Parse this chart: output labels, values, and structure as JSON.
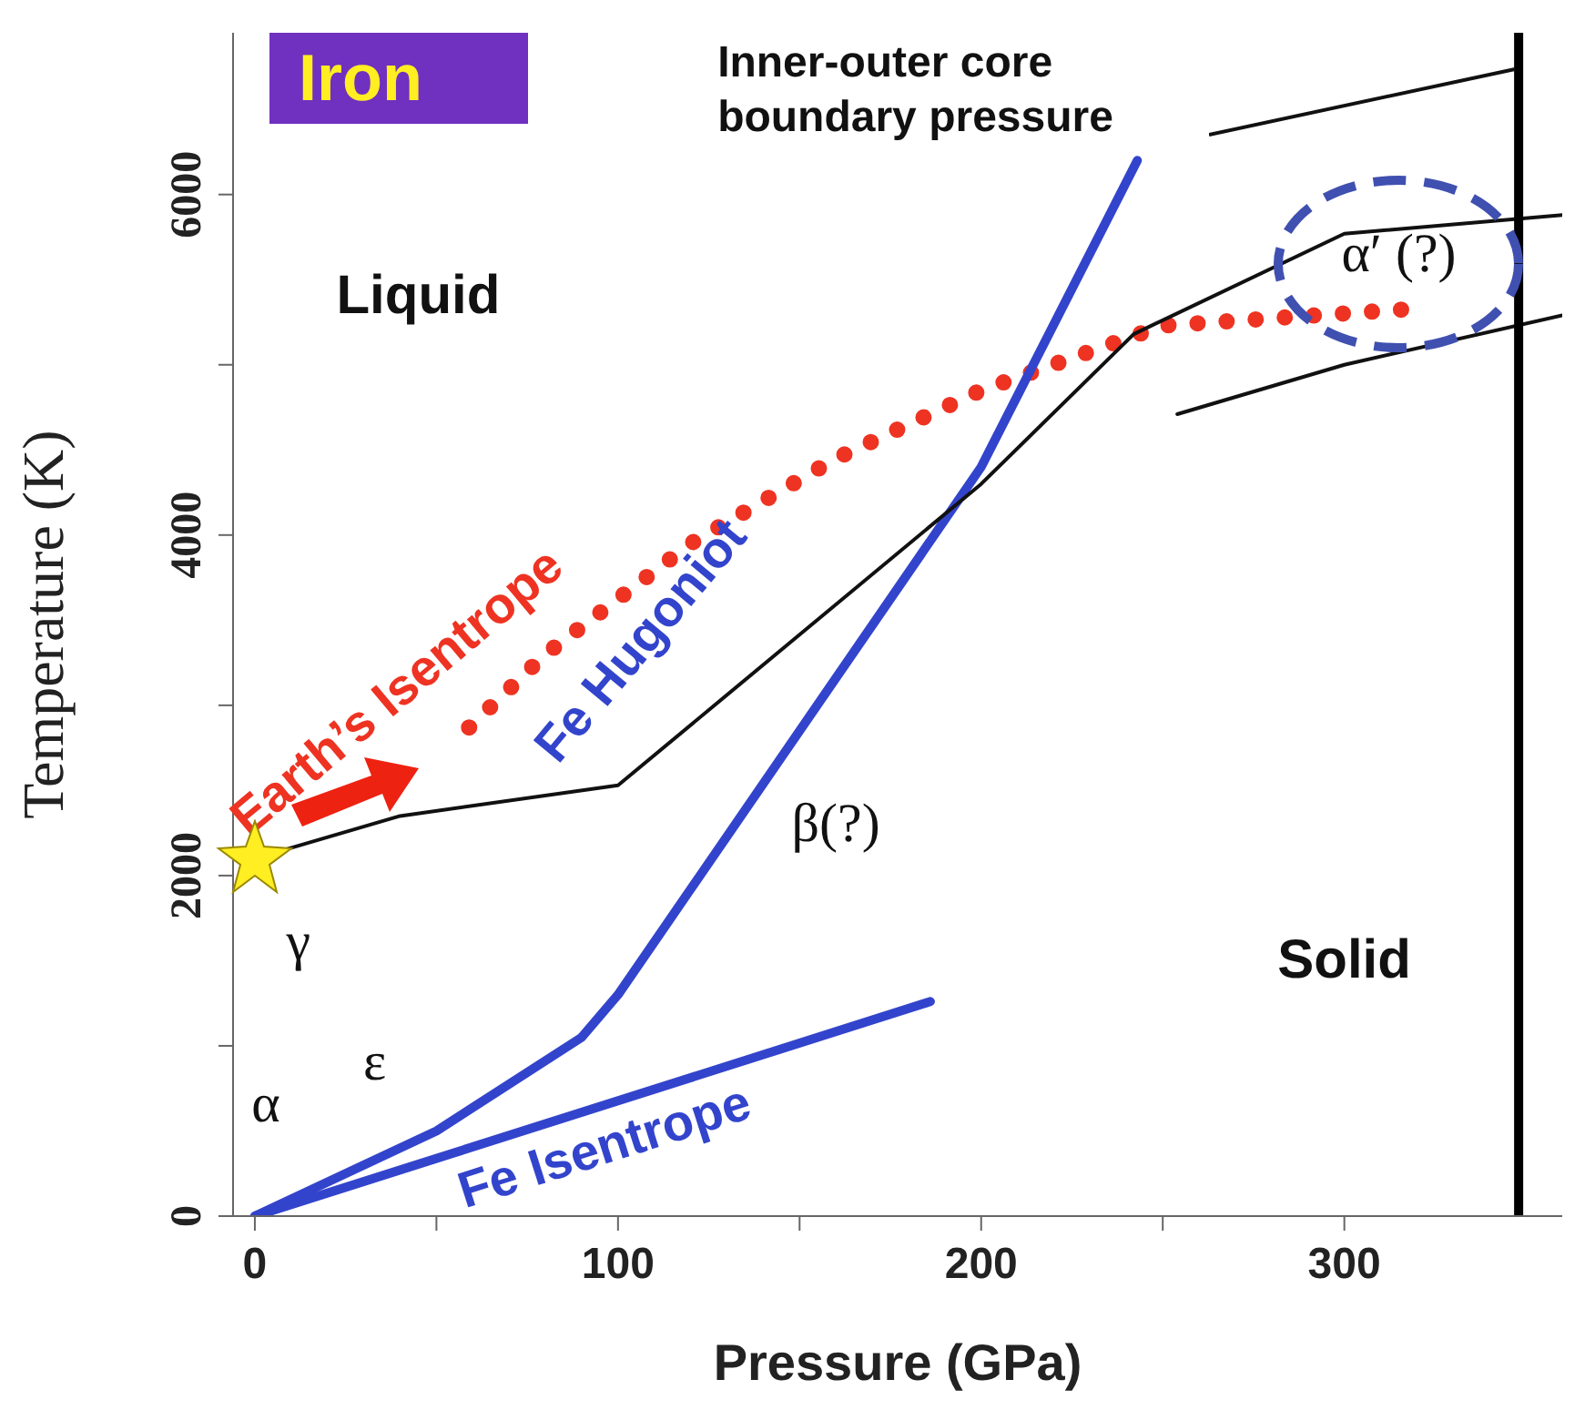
{
  "chart_data": {
    "type": "line",
    "title": "Iron",
    "xlabel": "Pressure (GPa)",
    "ylabel": "Temperature (K)",
    "xlim": [
      -6,
      360
    ],
    "ylim": [
      0,
      6950
    ],
    "xticks": [
      0,
      {
        "value": 50,
        "label": null
      },
      100,
      {
        "value": 150,
        "label": null
      },
      200,
      {
        "value": 250,
        "label": null
      },
      300
    ],
    "yticks": [
      0,
      {
        "value": 1000,
        "label": null
      },
      2000,
      {
        "value": 3000,
        "label": null
      },
      4000,
      {
        "value": 5000,
        "label": null
      },
      6000
    ],
    "series": [
      {
        "name": "Earth’s Isentrope",
        "color": "#ee3322",
        "line_style": "dotted",
        "x": [
          59,
          80,
          120,
          160,
          200,
          250,
          320
        ],
        "values": [
          2870,
          3300,
          3950,
          4450,
          4850,
          5230,
          5330
        ]
      },
      {
        "name": "Fe Hugoniot",
        "color": "#3344cc",
        "line_style": "solid",
        "x": [
          0,
          50,
          90,
          100,
          200,
          243
        ],
        "values": [
          0,
          500,
          1050,
          1300,
          4400,
          6200
        ]
      },
      {
        "name": "Fe Isentrope",
        "color": "#3344cc",
        "line_style": "solid",
        "x": [
          0,
          186
        ],
        "values": [
          0,
          1260
        ]
      },
      {
        "color": "#111111",
        "line_style": "solid",
        "x": [
          0,
          40,
          100,
          200,
          242,
          300,
          360
        ],
        "values": [
          2100,
          2350,
          2530,
          4300,
          5180,
          5770,
          5880
        ]
      },
      {
        "color": "#111111",
        "line_style": "solid",
        "x": [
          254,
          300,
          360
        ],
        "values": [
          4710,
          5000,
          5290
        ]
      }
    ],
    "ref_lines": [
      {
        "axis": "x",
        "value": 348,
        "label": "Inner-outer core boundary pressure",
        "color": "#000000"
      }
    ],
    "annotations": [
      "Liquid",
      "Solid",
      "γ",
      "α",
      "ε",
      "β(?)",
      "α′ (?)"
    ]
  }
}
